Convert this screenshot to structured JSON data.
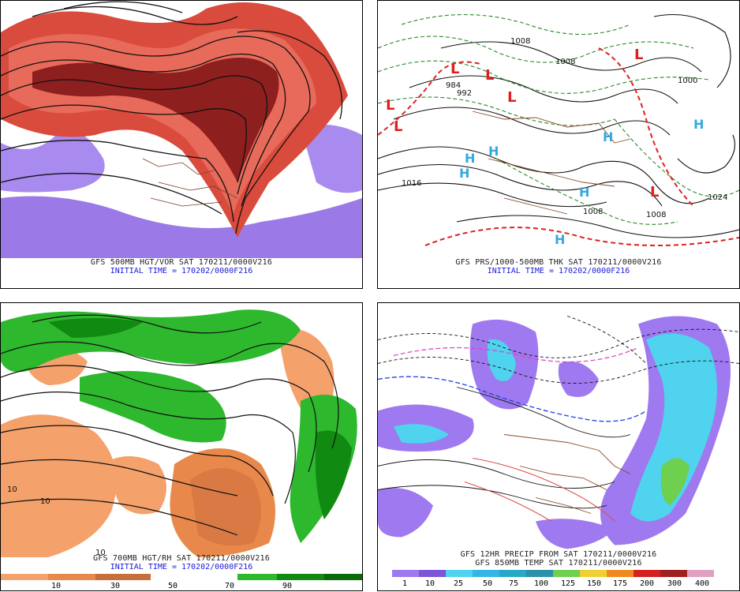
{
  "panels": [
    {
      "caption": "GFS 500MB HGT/VOR SAT 170211/0000V216",
      "initial": "INITIAL TIME = 170202/0000F216"
    },
    {
      "caption": "GFS PRS/1000-500MB THK SAT 170211/0000V216",
      "initial": "INITIAL TIME = 170202/0000F216"
    },
    {
      "caption": "GFS 700MB HGT/RH SAT 170211/0000V216",
      "initial": "INITIAL TIME = 170202/0000F216"
    },
    {
      "caption": "GFS 12HR PRECIP FROM SAT 170211/0000V216",
      "caption2": "GFS 850MB TEMP SAT 170211/0000V216"
    }
  ],
  "pressure_map": {
    "labels": [
      "1016",
      "1024",
      "1008",
      "992",
      "984",
      "1008",
      "1000",
      "1008",
      "1008"
    ],
    "lows": [
      "L",
      "L",
      "L",
      "L",
      "L",
      "L",
      "L"
    ],
    "highs": [
      "H",
      "H",
      "H",
      "H",
      "H",
      "H",
      "H"
    ]
  },
  "rh_colorbar": {
    "ticks": [
      "10",
      "30",
      "50",
      "70",
      "90"
    ],
    "colors": [
      "#f4a16b",
      "#e8894b",
      "#c76f3a",
      "#ffffff",
      "#ffffff",
      "#2eb82e",
      "#108a10",
      "#0a6a0a"
    ]
  },
  "precip_colorbar": {
    "ticks": [
      "1",
      "10",
      "25",
      "50",
      "75",
      "100",
      "125",
      "150",
      "175",
      "200",
      "300",
      "400"
    ],
    "colors": [
      "#ffffff",
      "#9f79ef",
      "#7e54d8",
      "#4fd3ee",
      "#33b5e5",
      "#26a8c9",
      "#2b90a9",
      "#6fcf4f",
      "#f0d030",
      "#f08a20",
      "#d52020",
      "#a02020",
      "#e0a0c0"
    ]
  }
}
